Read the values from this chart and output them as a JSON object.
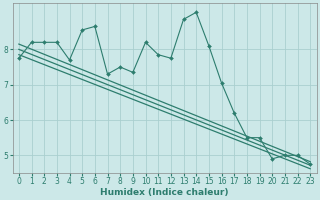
{
  "title": "",
  "xlabel": "Humidex (Indice chaleur)",
  "ylabel": "",
  "bg_color": "#cce8e8",
  "grid_color": "#aacfcf",
  "line_color": "#2d7d6e",
  "xlim": [
    -0.5,
    23.5
  ],
  "ylim": [
    4.5,
    9.3
  ],
  "yticks": [
    5,
    6,
    7,
    8
  ],
  "xticks": [
    0,
    1,
    2,
    3,
    4,
    5,
    6,
    7,
    8,
    9,
    10,
    11,
    12,
    13,
    14,
    15,
    16,
    17,
    18,
    19,
    20,
    21,
    22,
    23
  ],
  "series": [
    {
      "x": [
        0,
        1,
        2,
        3,
        4,
        5,
        6,
        7,
        8,
        9,
        10,
        11,
        12,
        13,
        14,
        15,
        16,
        17,
        18,
        19,
        20,
        21,
        22,
        23
      ],
      "y": [
        7.75,
        8.2,
        8.2,
        8.2,
        7.7,
        8.55,
        8.65,
        7.3,
        7.5,
        7.35,
        8.2,
        7.85,
        7.75,
        8.85,
        9.05,
        8.1,
        7.05,
        6.2,
        5.5,
        5.5,
        4.9,
        5.0,
        5.0,
        4.75
      ],
      "marker": "D",
      "markersize": 2.0,
      "lw": 0.8
    },
    {
      "x": [
        0,
        23
      ],
      "y": [
        8.15,
        4.82
      ],
      "marker": null,
      "markersize": 0,
      "lw": 0.9
    },
    {
      "x": [
        0,
        23
      ],
      "y": [
        8.0,
        4.72
      ],
      "marker": null,
      "markersize": 0,
      "lw": 0.9
    },
    {
      "x": [
        0,
        23
      ],
      "y": [
        7.85,
        4.62
      ],
      "marker": null,
      "markersize": 0,
      "lw": 0.9
    }
  ],
  "tick_fontsize": 5.5,
  "label_fontsize": 6.5,
  "tick_color": "#2d7d6e",
  "label_color": "#2d7d6e"
}
